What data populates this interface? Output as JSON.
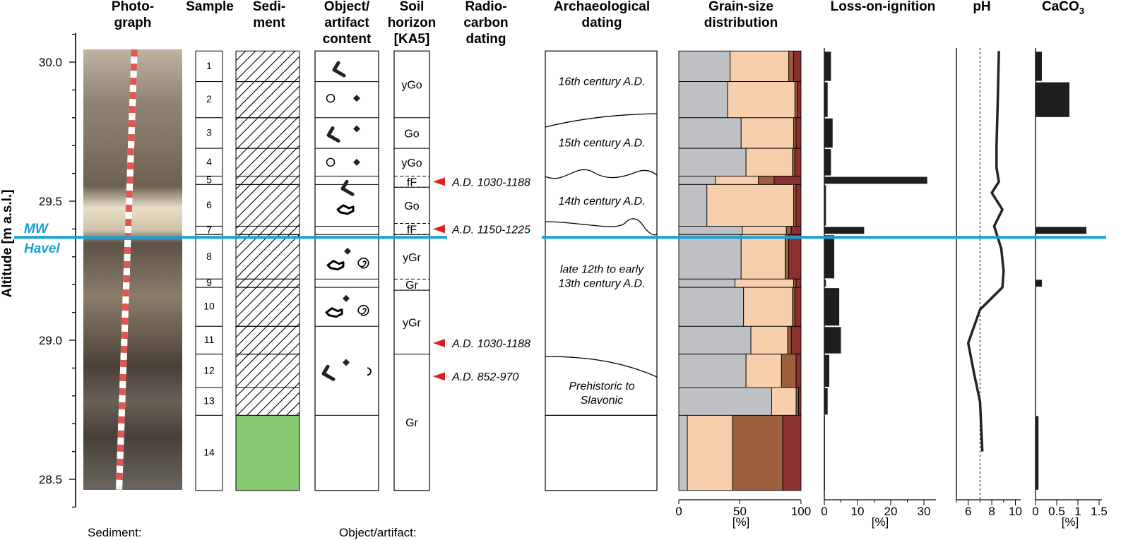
{
  "headers": {
    "photograph": [
      "Photo-",
      "graph"
    ],
    "sample": [
      "Sample"
    ],
    "sediment": [
      "Sedi-",
      "ment"
    ],
    "object": [
      "Object/",
      "artifact",
      "content"
    ],
    "soil": [
      "Soil",
      "horizon",
      "[KA5]"
    ],
    "radiocarbon": [
      "Radio-",
      "carbon",
      "dating"
    ],
    "archaeological": [
      "Archaeological",
      "dating"
    ],
    "grain": [
      "Grain-size",
      "distribution"
    ],
    "loi": [
      "Loss-on-ignition"
    ],
    "ph": [
      "pH"
    ],
    "caco3": "CaCO"
  },
  "altitude_axis": {
    "label": "Altitude [m a.s.l.]",
    "ticks": [
      "30.0",
      "29.5",
      "29.0",
      "28.5"
    ]
  },
  "water_level": {
    "label1": "MW",
    "label2": "Havel",
    "altitude": 29.37,
    "color": "#1aa0d8"
  },
  "samples": [
    {
      "n": "1",
      "top": 30.04,
      "bot": 29.93
    },
    {
      "n": "2",
      "top": 29.93,
      "bot": 29.8
    },
    {
      "n": "3",
      "top": 29.8,
      "bot": 29.69
    },
    {
      "n": "4",
      "top": 29.69,
      "bot": 29.59
    },
    {
      "n": "5",
      "top": 29.59,
      "bot": 29.56
    },
    {
      "n": "6",
      "top": 29.56,
      "bot": 29.41
    },
    {
      "n": "7",
      "top": 29.41,
      "bot": 29.38
    },
    {
      "n": "8",
      "top": 29.38,
      "bot": 29.22
    },
    {
      "n": "9",
      "top": 29.22,
      "bot": 29.19
    },
    {
      "n": "10",
      "top": 29.19,
      "bot": 29.05
    },
    {
      "n": "11",
      "top": 29.05,
      "bot": 28.95
    },
    {
      "n": "12",
      "top": 28.95,
      "bot": 28.83
    },
    {
      "n": "13",
      "top": 28.83,
      "bot": 28.73
    },
    {
      "n": "14",
      "top": 28.73,
      "bot": 28.46
    }
  ],
  "soil_horizons": [
    {
      "label": "yGo",
      "top": 30.04,
      "bot": 29.8
    },
    {
      "label": "Go",
      "top": 29.8,
      "bot": 29.69
    },
    {
      "label": "yGo",
      "top": 29.69,
      "bot": 29.59
    },
    {
      "label": "fF",
      "top": 29.59,
      "bot": 29.55
    },
    {
      "label": "Go",
      "top": 29.55,
      "bot": 29.42
    },
    {
      "label": "fF",
      "top": 29.42,
      "bot": 29.38
    },
    {
      "label": "yGr",
      "top": 29.38,
      "bot": 29.22
    },
    {
      "label": "Gr",
      "top": 29.22,
      "bot": 29.18
    },
    {
      "label": "yGr",
      "top": 29.18,
      "bot": 28.95
    },
    {
      "label": "Gr",
      "top": 28.95,
      "bot": 28.46
    }
  ],
  "radiocarbon": [
    {
      "label": "A.D. 1030-1188",
      "altitude": 29.57
    },
    {
      "label": "A.D. 1150-1225",
      "altitude": 29.4
    },
    {
      "label": "A.D. 1030-1188",
      "altitude": 28.99
    },
    {
      "label": "A.D. 852-970",
      "altitude": 28.87
    }
  ],
  "archaeological": [
    {
      "label": [
        "16th century A.D."
      ],
      "altitude": 29.93
    },
    {
      "label": [
        "15th century A.D."
      ],
      "altitude": 29.71
    },
    {
      "label": [
        "14th century A.D."
      ],
      "altitude": 29.5
    },
    {
      "label": [
        "late 12th to early",
        "13th century A.D."
      ],
      "altitude": 29.23
    },
    {
      "label": [
        "Prehistoric to",
        "Slavonic"
      ],
      "altitude": 28.81
    }
  ],
  "grain_size": {
    "colors": [
      "#bfc1c5",
      "#f7cfad",
      "#9b5f3c",
      "#8c2f2f"
    ],
    "xticks": [
      "0",
      "50",
      "100"
    ],
    "unit": "[%]",
    "samples": [
      [
        42,
        48,
        4,
        6
      ],
      [
        40,
        55,
        2,
        3
      ],
      [
        51,
        43,
        2,
        4
      ],
      [
        55,
        38,
        2,
        5
      ],
      [
        30,
        35,
        13,
        22
      ],
      [
        23,
        71,
        2,
        4
      ],
      [
        52,
        36,
        4,
        8
      ],
      [
        51,
        36,
        3,
        10
      ],
      [
        46,
        48,
        2,
        4
      ],
      [
        53,
        40,
        2,
        5
      ],
      [
        59,
        30,
        3,
        8
      ],
      [
        55,
        29,
        12,
        4
      ],
      [
        76,
        20,
        2,
        2
      ],
      [
        7,
        37,
        41,
        15
      ]
    ]
  },
  "loss_on_ignition": {
    "xticks": [
      "0",
      "10",
      "20",
      "30"
    ],
    "unit": "[%]",
    "values": [
      2.0,
      1.0,
      2.5,
      2.0,
      31.0,
      0.5,
      12.0,
      3.0,
      0.5,
      4.5,
      5.0,
      1.5,
      1.0,
      0.2
    ]
  },
  "ph": {
    "xticks": [
      "6",
      "8",
      "10"
    ],
    "reference": 7.0,
    "points": [
      [
        8.6,
        30.04
      ],
      [
        8.5,
        29.85
      ],
      [
        8.4,
        29.7
      ],
      [
        8.4,
        29.62
      ],
      [
        8.6,
        29.57
      ],
      [
        8.0,
        29.53
      ],
      [
        8.9,
        29.47
      ],
      [
        8.2,
        29.41
      ],
      [
        8.8,
        29.33
      ],
      [
        9.0,
        29.25
      ],
      [
        8.9,
        29.19
      ],
      [
        7.0,
        29.11
      ],
      [
        6.0,
        28.99
      ],
      [
        6.5,
        28.88
      ],
      [
        7.0,
        28.78
      ],
      [
        7.2,
        28.6
      ]
    ]
  },
  "caco3": {
    "xticks": [
      "0",
      "0.5",
      "1",
      "1.5"
    ],
    "unit": "[%]",
    "values": [
      0.15,
      0.8,
      0,
      0,
      0,
      0,
      1.2,
      0,
      0.15,
      0,
      0,
      0,
      0,
      0.07
    ]
  },
  "legend": {
    "sediment": "Sediment:",
    "object": "Object/artifact:"
  }
}
